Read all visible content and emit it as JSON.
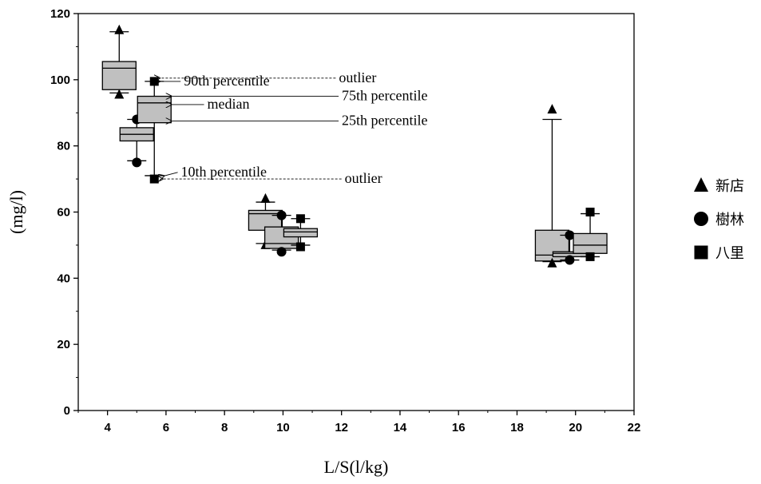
{
  "chart_data": {
    "type": "boxplot",
    "xlabel": "L/S(l/kg)",
    "ylabel": "(mg/l)",
    "xlim": [
      3,
      22
    ],
    "ylim": [
      0,
      120
    ],
    "x_ticks": [
      4,
      6,
      8,
      10,
      12,
      14,
      16,
      18,
      20,
      22
    ],
    "y_ticks": [
      0,
      20,
      40,
      60,
      80,
      100,
      120
    ],
    "grid": false,
    "legend_position": "right",
    "series": [
      {
        "name": "新店",
        "marker": "triangle",
        "boxes": [
          {
            "x": 4.4,
            "p10": 96,
            "p25": 97,
            "median": 103.5,
            "p75": 105.5,
            "p90": 114.5,
            "outliers": [
              115,
              95.5
            ]
          },
          {
            "x": 9.4,
            "p10": 50.5,
            "p25": 54.5,
            "median": 59.5,
            "p75": 60.5,
            "p90": 63,
            "outliers": [
              64,
              50
            ]
          },
          {
            "x": 19.2,
            "p10": 45,
            "p25": 45.2,
            "median": 47,
            "p75": 54.5,
            "p90": 88,
            "outliers": [
              91,
              44.5
            ]
          }
        ]
      },
      {
        "name": "樹林",
        "marker": "circle",
        "boxes": [
          {
            "x": 5.0,
            "p10": 75.5,
            "p25": 81.5,
            "median": 83.5,
            "p75": 85.5,
            "p90": 88,
            "outliers": [
              88,
              75
            ]
          },
          {
            "x": 9.95,
            "p10": 48.5,
            "p25": 49,
            "median": 50.5,
            "p75": 55.5,
            "p90": 59,
            "outliers": [
              59,
              48
            ]
          },
          {
            "x": 19.8,
            "p10": 45.5,
            "p25": 46.5,
            "median": 47.5,
            "p75": 48,
            "p90": 53,
            "outliers": [
              53,
              45.5
            ]
          }
        ]
      },
      {
        "name": "八里",
        "marker": "square",
        "boxes": [
          {
            "x": 5.6,
            "p10": 71,
            "p25": 87,
            "median": 93,
            "p75": 95,
            "p90": 99.5,
            "outliers": [
              99.5,
              70
            ]
          },
          {
            "x": 10.6,
            "p10": 50,
            "p25": 52.5,
            "median": 54,
            "p75": 55,
            "p90": 58,
            "outliers": [
              58,
              49.5
            ]
          },
          {
            "x": 20.5,
            "p10": 46.5,
            "p25": 47.5,
            "median": 50,
            "p75": 53.5,
            "p90": 59.5,
            "outliers": [
              60,
              46.5
            ]
          }
        ]
      }
    ],
    "annotations": [
      {
        "text": "90th percentile",
        "target_x": 5.65,
        "target_y": 99.5,
        "text_x": 6.5,
        "text_y": 99.5
      },
      {
        "text": "outlier",
        "target_x": 5.65,
        "target_y": 100.5,
        "text_x": 11.8,
        "text_y": 100.5
      },
      {
        "text": "75th percentile",
        "target_x": 6.05,
        "target_y": 95,
        "text_x": 11.9,
        "text_y": 95
      },
      {
        "text": "median",
        "target_x": 6.05,
        "target_y": 92.5,
        "text_x": 7.3,
        "text_y": 92.5
      },
      {
        "text": "25th percentile",
        "target_x": 6.05,
        "target_y": 87.5,
        "text_x": 11.9,
        "text_y": 87.5
      },
      {
        "text": "10th percentile",
        "target_x": 5.8,
        "target_y": 71,
        "text_x": 6.4,
        "text_y": 72
      },
      {
        "text": "outlier",
        "target_x": 5.75,
        "target_y": 70,
        "text_x": 12,
        "text_y": 70
      }
    ]
  }
}
